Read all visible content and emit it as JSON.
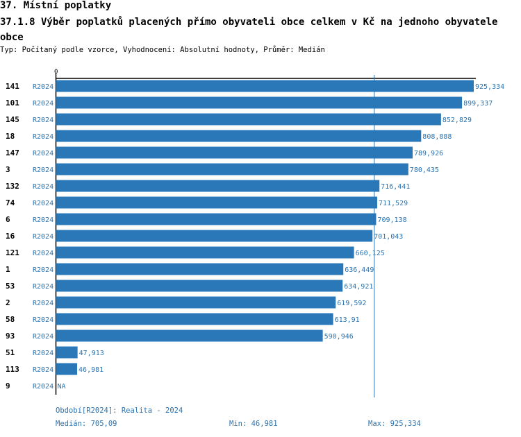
{
  "header": {
    "title": "37. Místní poplatky",
    "subtitle": "37.1.8 Výběr poplatků placených přímo obyvateli obce celkem  v Kč na jednoho obyvatele obce",
    "description": "Typ: Počítaný podle vzorce, Vyhodnocení: Absolutní hodnoty, Průměr: Medián"
  },
  "chart_data": {
    "type": "bar",
    "orientation": "horizontal",
    "axis_zero_label": "0",
    "xlim": [
      0,
      925.334
    ],
    "median_line": 705.09,
    "colors": {
      "bar": "#2a78b8",
      "value_label": "#2a73b0",
      "axis": "#000000",
      "category": "#000000"
    },
    "categories": [
      "141",
      "101",
      "145",
      "18",
      "147",
      "3",
      "132",
      "74",
      "6",
      "16",
      "121",
      "1",
      "53",
      "2",
      "58",
      "93",
      "51",
      "113",
      "9"
    ],
    "series": [
      {
        "period": "R2024",
        "values": [
          925.334,
          899.337,
          852.829,
          808.888,
          789.926,
          780.435,
          716.441,
          711.529,
          709.138,
          701.043,
          660.125,
          636.449,
          634.921,
          619.592,
          613.91,
          590.946,
          47.913,
          46.981,
          null
        ],
        "labels": [
          "925,334",
          "899,337",
          "852,829",
          "808,888",
          "789,926",
          "780,435",
          "716,441",
          "711,529",
          "709,138",
          "701,043",
          "660,125",
          "636,449",
          "634,921",
          "619,592",
          "613,91",
          "590,946",
          "47,913",
          "46,981",
          "NA"
        ]
      }
    ]
  },
  "footer": {
    "period": "Období[R2024]: Realita - 2024",
    "median": "Medián: 705,09",
    "min": "Min: 46,981",
    "max": "Max: 925,334"
  }
}
